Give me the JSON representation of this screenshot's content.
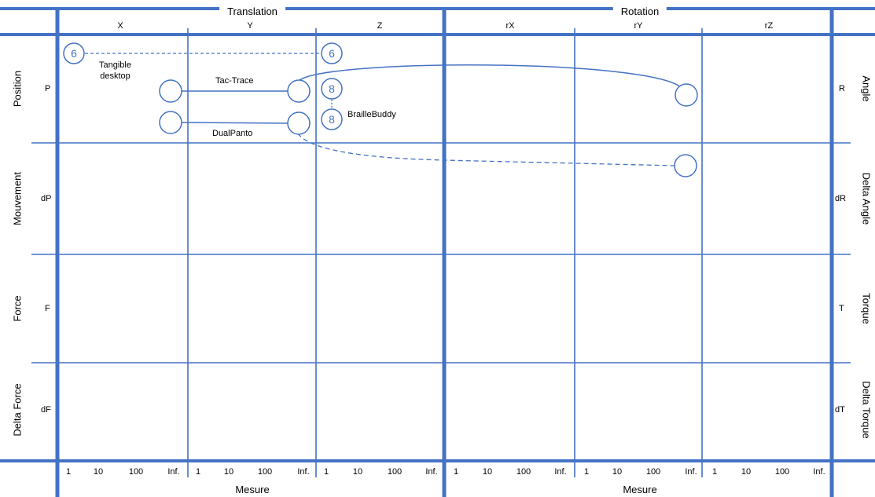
{
  "headers": {
    "translation": "Translation",
    "rotation": "Rotation",
    "axes": [
      "X",
      "Y",
      "Z",
      "rX",
      "rY",
      "rZ"
    ]
  },
  "rows_left": [
    {
      "label": "Position",
      "symbol": "P"
    },
    {
      "label": "Mouvement",
      "symbol": "dP"
    },
    {
      "label": "Force",
      "symbol": "F"
    },
    {
      "label": "Delta Force",
      "symbol": "dF"
    }
  ],
  "rows_right": [
    {
      "label": "Angle",
      "symbol": "R"
    },
    {
      "label": "Delta Angle",
      "symbol": "dR"
    },
    {
      "label": "Torque",
      "symbol": "T"
    },
    {
      "label": "Delta Torque",
      "symbol": "dT"
    }
  ],
  "scale_ticks": [
    "1",
    "10",
    "100",
    "Inf."
  ],
  "footer": {
    "mesure_left": "Mesure",
    "mesure_right": "Mesure"
  },
  "devices": {
    "tangible_desktop": {
      "label_line1": "Tangible",
      "label_line2": "desktop",
      "count": "6"
    },
    "tac_trace": {
      "label": "Tac-Trace"
    },
    "braille_buddy": {
      "label": "BrailleBuddy",
      "count": "8"
    },
    "dual_panto": {
      "label": "DualPanto"
    }
  },
  "colors": {
    "line": "#4472c4"
  }
}
